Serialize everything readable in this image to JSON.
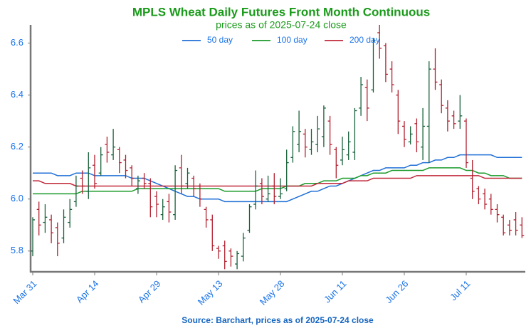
{
  "chart_data": {
    "type": "ohlc",
    "title": "MPLS Wheat Daily Futures Front Month Continuous",
    "subtitle": "prices as of 2025-07-24 close",
    "source": "Source: Barchart, prices as of 2025-07-24 close",
    "categories": [
      "Mar 31",
      null,
      null,
      null,
      null,
      null,
      null,
      null,
      null,
      null,
      "Apr 14",
      null,
      null,
      null,
      null,
      null,
      null,
      null,
      null,
      null,
      "Apr 29",
      null,
      null,
      null,
      null,
      null,
      null,
      null,
      null,
      null,
      "May 13",
      null,
      null,
      null,
      null,
      null,
      null,
      null,
      null,
      null,
      "May 28",
      null,
      null,
      null,
      null,
      null,
      null,
      null,
      null,
      null,
      "Jun 11",
      null,
      null,
      null,
      null,
      null,
      null,
      null,
      null,
      null,
      "Jun 26",
      null,
      null,
      null,
      null,
      null,
      null,
      null,
      null,
      null,
      "Jul 11",
      null,
      null,
      null,
      null,
      null,
      null,
      null,
      null,
      null
    ],
    "up_color": "#17613a",
    "down_color": "#b0202e",
    "open": [
      5.8,
      5.96,
      5.91,
      5.92,
      5.89,
      5.85,
      5.91,
      5.99,
      6.08,
      6.03,
      6.13,
      6.1,
      6.21,
      6.17,
      6.19,
      6.15,
      6.12,
      6.04,
      6.08,
      6.06,
      6.01,
      5.94,
      5.99,
      5.94,
      6.12,
      6.06,
      6.08,
      6.05,
      5.96,
      5.92,
      5.81,
      5.82,
      5.8,
      5.75,
      5.78,
      5.88,
      5.98,
      6.06,
      6.0,
      6.05,
      6.01,
      6.04,
      6.16,
      6.21,
      6.25,
      6.19,
      6.21,
      6.24,
      6.3,
      6.19,
      6.15,
      6.17,
      6.18,
      6.35,
      6.43,
      6.42,
      6.64,
      6.59,
      6.5,
      6.4,
      6.28,
      6.22,
      6.29,
      6.2,
      6.28,
      6.5,
      6.44,
      6.35,
      6.32,
      6.3,
      6.3,
      6.08,
      6.04,
      6.02,
      6.0,
      5.96,
      5.93,
      5.9,
      5.92,
      5.9
    ],
    "high": [
      5.93,
      5.99,
      5.98,
      5.94,
      5.91,
      5.96,
      6.0,
      6.09,
      6.11,
      6.18,
      6.17,
      6.2,
      6.24,
      6.27,
      6.2,
      6.17,
      6.13,
      6.09,
      6.1,
      6.08,
      6.03,
      6.0,
      6.02,
      6.13,
      6.17,
      6.12,
      6.09,
      6.06,
      5.97,
      5.94,
      5.82,
      5.84,
      5.81,
      5.8,
      5.87,
      5.98,
      6.11,
      6.08,
      6.09,
      6.1,
      6.08,
      6.19,
      6.28,
      6.34,
      6.27,
      6.27,
      6.32,
      6.36,
      6.32,
      6.2,
      6.24,
      6.26,
      6.35,
      6.47,
      6.46,
      6.62,
      6.67,
      6.6,
      6.53,
      6.42,
      6.3,
      6.28,
      6.31,
      6.35,
      6.53,
      6.58,
      6.46,
      6.38,
      6.34,
      6.4,
      6.31,
      6.15,
      6.05,
      6.04,
      6.02,
      5.98,
      5.94,
      5.92,
      5.95,
      5.93
    ],
    "low": [
      5.78,
      5.86,
      5.87,
      5.83,
      5.78,
      5.83,
      5.89,
      5.97,
      6.02,
      6.0,
      6.04,
      6.09,
      6.14,
      6.15,
      6.1,
      6.08,
      6.05,
      6.02,
      6.04,
      5.93,
      5.93,
      5.92,
      5.91,
      5.92,
      6.02,
      6.04,
      6.01,
      5.97,
      5.89,
      5.8,
      5.77,
      5.73,
      5.74,
      5.73,
      5.76,
      5.87,
      5.96,
      5.98,
      5.99,
      5.98,
      6.0,
      6.03,
      6.14,
      6.18,
      6.16,
      6.17,
      6.18,
      6.2,
      6.17,
      6.08,
      6.13,
      6.15,
      6.15,
      6.32,
      6.3,
      6.41,
      6.54,
      6.45,
      6.41,
      6.25,
      6.2,
      6.21,
      6.18,
      6.15,
      6.14,
      6.42,
      6.33,
      6.26,
      6.27,
      6.27,
      6.12,
      6.0,
      5.98,
      5.96,
      5.94,
      5.91,
      5.86,
      5.86,
      5.86,
      5.85
    ],
    "close": [
      5.92,
      5.9,
      5.93,
      5.87,
      5.83,
      5.93,
      5.96,
      6.05,
      6.05,
      6.12,
      6.06,
      6.17,
      6.18,
      6.2,
      6.14,
      6.11,
      6.08,
      6.07,
      6.06,
      5.97,
      5.98,
      5.97,
      5.95,
      6.11,
      6.05,
      6.1,
      6.04,
      6.0,
      5.92,
      5.82,
      5.8,
      5.76,
      5.78,
      5.79,
      5.85,
      5.97,
      6.05,
      6.01,
      6.02,
      6.01,
      6.02,
      6.14,
      6.26,
      6.26,
      6.2,
      6.22,
      6.27,
      6.35,
      6.21,
      6.13,
      6.19,
      6.22,
      6.34,
      6.44,
      6.35,
      6.61,
      6.58,
      6.48,
      6.44,
      6.3,
      6.23,
      6.25,
      6.22,
      6.28,
      6.5,
      6.45,
      6.36,
      6.3,
      6.29,
      6.32,
      6.14,
      6.03,
      6.0,
      5.98,
      5.96,
      5.94,
      5.87,
      5.88,
      5.88,
      5.86
    ],
    "series": [
      {
        "name": "50 day",
        "color": "#1f6fd6",
        "values": [
          6.1,
          6.1,
          6.1,
          6.1,
          6.09,
          6.09,
          6.09,
          6.1,
          6.1,
          6.1,
          6.09,
          6.09,
          6.09,
          6.09,
          6.09,
          6.09,
          6.08,
          6.08,
          6.08,
          6.07,
          6.06,
          6.05,
          6.04,
          6.03,
          6.02,
          6.01,
          6.01,
          6.0,
          6.0,
          6.0,
          6.0,
          5.99,
          5.99,
          5.99,
          5.99,
          5.99,
          5.99,
          5.99,
          5.99,
          5.99,
          5.99,
          5.99,
          6.0,
          6.01,
          6.02,
          6.03,
          6.03,
          6.04,
          6.05,
          6.05,
          6.06,
          6.07,
          6.08,
          6.09,
          6.1,
          6.11,
          6.11,
          6.12,
          6.12,
          6.12,
          6.12,
          6.13,
          6.13,
          6.14,
          6.14,
          6.15,
          6.15,
          6.16,
          6.16,
          6.17,
          6.17,
          6.17,
          6.17,
          6.17,
          6.17,
          6.16,
          6.16,
          6.16,
          6.16,
          6.16
        ]
      },
      {
        "name": "100 day",
        "color": "#1a9a2a",
        "values": [
          6.02,
          6.02,
          6.02,
          6.02,
          6.02,
          6.02,
          6.02,
          6.02,
          6.03,
          6.03,
          6.03,
          6.03,
          6.03,
          6.03,
          6.03,
          6.03,
          6.03,
          6.04,
          6.04,
          6.04,
          6.04,
          6.04,
          6.04,
          6.04,
          6.04,
          6.04,
          6.04,
          6.04,
          6.04,
          6.04,
          6.04,
          6.03,
          6.03,
          6.03,
          6.03,
          6.03,
          6.03,
          6.04,
          6.04,
          6.04,
          6.04,
          6.05,
          6.05,
          6.05,
          6.06,
          6.06,
          6.06,
          6.07,
          6.07,
          6.07,
          6.08,
          6.08,
          6.08,
          6.09,
          6.09,
          6.1,
          6.1,
          6.1,
          6.11,
          6.11,
          6.11,
          6.11,
          6.11,
          6.11,
          6.12,
          6.12,
          6.12,
          6.12,
          6.12,
          6.12,
          6.11,
          6.11,
          6.1,
          6.1,
          6.09,
          6.09,
          6.09,
          6.08,
          6.08,
          6.08
        ]
      },
      {
        "name": "200 day",
        "color": "#c0283a",
        "values": [
          6.07,
          6.07,
          6.06,
          6.06,
          6.06,
          6.06,
          6.06,
          6.05,
          6.05,
          6.05,
          6.05,
          6.05,
          6.05,
          6.05,
          6.05,
          6.05,
          6.05,
          6.05,
          6.05,
          6.05,
          6.05,
          6.05,
          6.05,
          6.05,
          6.05,
          6.05,
          6.05,
          6.05,
          6.05,
          6.05,
          6.05,
          6.05,
          6.05,
          6.05,
          6.05,
          6.05,
          6.05,
          6.05,
          6.05,
          6.05,
          6.05,
          6.05,
          6.05,
          6.05,
          6.05,
          6.05,
          6.06,
          6.06,
          6.06,
          6.06,
          6.06,
          6.07,
          6.07,
          6.07,
          6.07,
          6.08,
          6.08,
          6.08,
          6.08,
          6.08,
          6.08,
          6.08,
          6.09,
          6.09,
          6.09,
          6.09,
          6.09,
          6.09,
          6.09,
          6.09,
          6.09,
          6.09,
          6.09,
          6.08,
          6.08,
          6.08,
          6.08,
          6.08,
          6.08,
          6.08
        ]
      }
    ],
    "ylim": [
      5.72,
      6.67
    ],
    "yticks": [
      5.8,
      {
        "value": 6,
        "label": "6.0"
      },
      6.2,
      6.4,
      6.6
    ]
  }
}
